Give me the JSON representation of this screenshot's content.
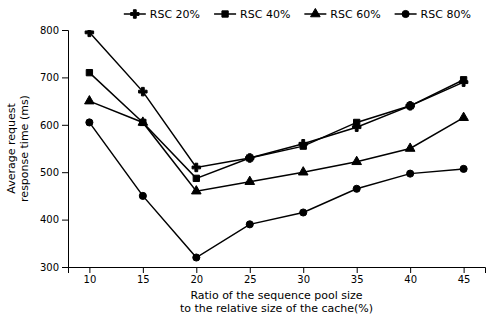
{
  "chart_data": {
    "type": "line",
    "xlabel": "Ratio of the sequence pool size\nto the relative size of the cache(%)",
    "ylabel": "Average request\nresponse time (ms)",
    "x": [
      10,
      15,
      20,
      25,
      30,
      35,
      40,
      45
    ],
    "series": [
      {
        "name": "RSC 20%",
        "color": "black",
        "marker": "plus",
        "values": [
          795,
          670,
          510,
          530,
          560,
          595,
          640,
          690
        ]
      },
      {
        "name": "RSC 40%",
        "color": "black",
        "marker": "square",
        "values": [
          710,
          605,
          487,
          530,
          555,
          605,
          640,
          695
        ]
      },
      {
        "name": "RSC 60%",
        "color": "black",
        "marker": "triangle",
        "values": [
          650,
          605,
          460,
          480,
          500,
          522,
          550,
          615
        ]
      },
      {
        "name": "RSC 80%",
        "color": "black",
        "marker": "circle",
        "values": [
          605,
          450,
          320,
          390,
          415,
          465,
          497,
          507
        ]
      }
    ],
    "xlim": [
      8,
      47
    ],
    "ylim": [
      300,
      800
    ],
    "xticks": [
      10,
      15,
      20,
      25,
      30,
      35,
      40,
      45
    ],
    "yticks": [
      300,
      400,
      500,
      600,
      700,
      800
    ],
    "grid": false,
    "legend": "top"
  }
}
